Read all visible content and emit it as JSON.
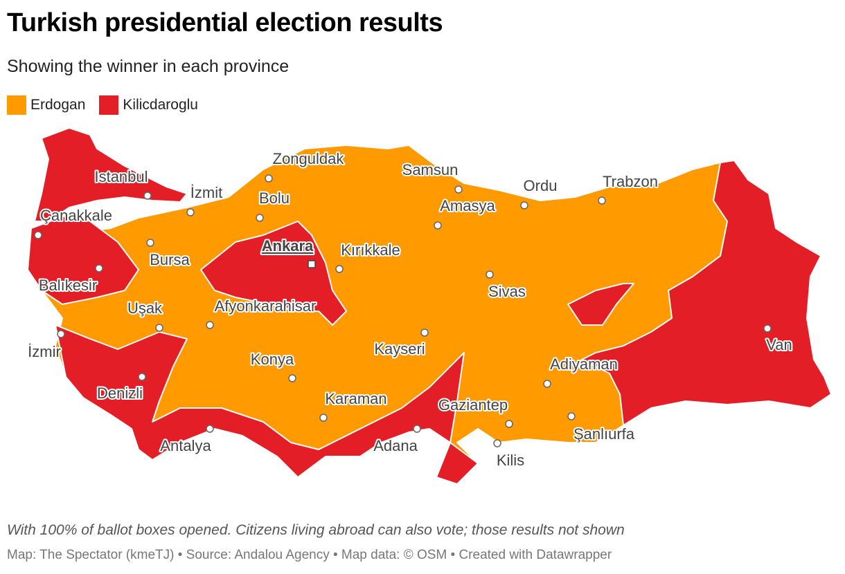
{
  "header": {
    "title": "Turkish presidential election results",
    "subtitle": "Showing the winner in each province"
  },
  "legend": [
    {
      "label": "Erdogan",
      "color": "#ff9a00"
    },
    {
      "label": "Kilicdaroglu",
      "color": "#e31e26"
    }
  ],
  "cities": [
    "Istanbul",
    "Çanakkale",
    "İzmit",
    "Zonguldak",
    "Bolu",
    "Bursa",
    "Balıkesir",
    "Ankara",
    "Kırıkkale",
    "Samsun",
    "Amasya",
    "Ordu",
    "Trabzon",
    "Sivas",
    "Uşak",
    "Afyonkarahisar",
    "İzmir",
    "Konya",
    "Kayseri",
    "Van",
    "Adiyaman",
    "Denizli",
    "Karaman",
    "Gaziantep",
    "Şanlıurfa",
    "Antalya",
    "Adana",
    "Kilis"
  ],
  "footer": {
    "note": "With 100% of ballot boxes opened. Citizens living abroad can also vote; those results not shown",
    "credit": "Map: The Spectator (kmeTJ) • Source: Andalou Agency • Map data: © OSM • Created with Datawrapper"
  }
}
